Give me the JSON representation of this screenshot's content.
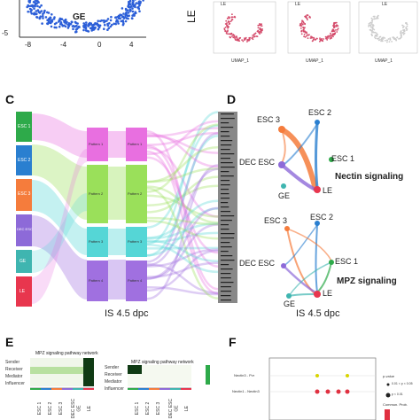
{
  "top_left": {
    "yticks": [
      "-5"
    ],
    "xticks": [
      "-8",
      "-4",
      "0",
      "4"
    ],
    "cluster_label": "GE"
  },
  "top_right": {
    "row_label": "LE",
    "umap_x": "UMAP_1",
    "umap_y": "UMAP_2",
    "mini_labels": [
      "LE",
      "LE",
      "LE"
    ]
  },
  "panel_c": {
    "letter": "C",
    "source_groups": [
      "ESC 1",
      "ESC 2",
      "ESC 3",
      "DEC ESC",
      "GE",
      "LE"
    ],
    "patterns_left": [
      "Pattern 1",
      "Pattern 2",
      "Pattern 3",
      "Pattern 4"
    ],
    "patterns_right": [
      "Pattern 1",
      "Pattern 2",
      "Pattern 3",
      "Pattern 4"
    ],
    "caption": "IS 4.5 dpc",
    "colors": [
      "#2eaa4a",
      "#2a7fd0",
      "#f57c3c",
      "#8d6ad8",
      "#3fb5b0",
      "#e8364e"
    ],
    "pattern_colors": [
      "#e86fe0",
      "#9ae05a",
      "#55d6d6",
      "#a070e0"
    ]
  },
  "panel_d": {
    "letter": "D",
    "nectin": {
      "title": "Nectin signaling",
      "nodes": [
        "ESC 3",
        "ESC 2",
        "ESC 1",
        "DEC ESC",
        "GE",
        "LE"
      ]
    },
    "mpz": {
      "title": "MPZ signaling",
      "nodes": [
        "ESC 3",
        "ESC 2",
        "ESC 1",
        "DEC ESC",
        "GE",
        "LE"
      ]
    },
    "caption": "IS 4.5 dpc"
  },
  "panel_e": {
    "letter": "E",
    "heatmap_title": "MPZ signaling pathway network",
    "rows": [
      "Sender",
      "Receiver",
      "Mediator",
      "Influencer"
    ],
    "cols": [
      "ESC 1",
      "ESC 2",
      "ESC 3",
      "DEC ESC",
      "GE",
      "LE"
    ]
  },
  "panel_f": {
    "letter": "F",
    "rows": [
      "Nectin3 - Pvr",
      "Nectin1 - Nectin3"
    ],
    "legend_title": "p-value",
    "legend_items": [
      "0.01 < p < 0.05",
      "p < 0.01"
    ],
    "legend2_title": "Commun. Prob."
  }
}
